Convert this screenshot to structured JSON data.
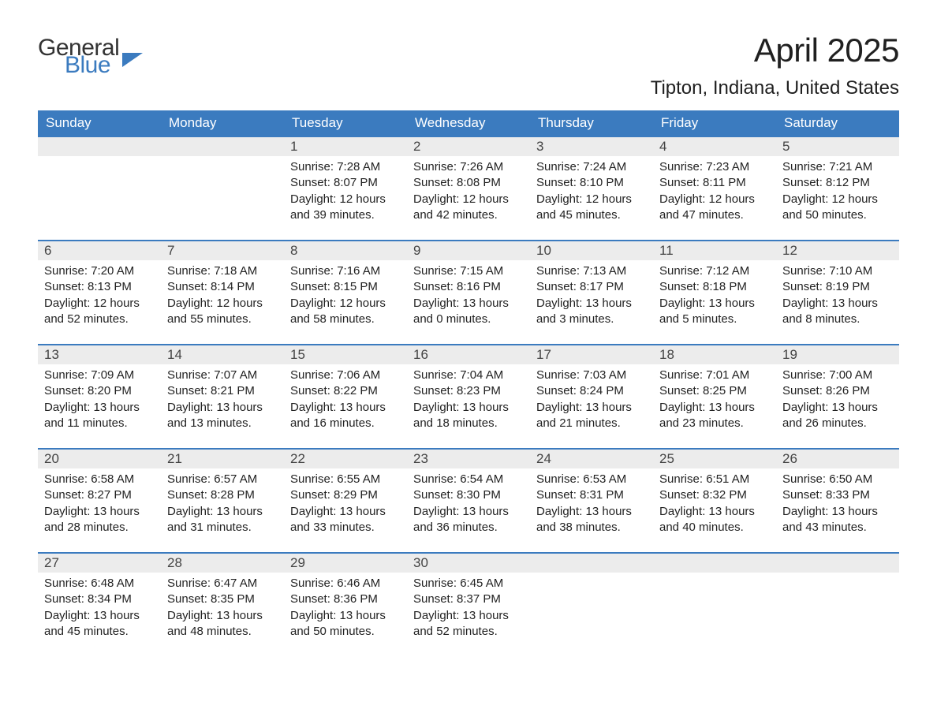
{
  "logo": {
    "text_general": "General",
    "text_blue": "Blue"
  },
  "title": "April 2025",
  "location": "Tipton, Indiana, United States",
  "colors": {
    "header_bg": "#3b7bbf",
    "header_text": "#ffffff",
    "daynum_bg": "#ececec",
    "row_border": "#3b7bbf",
    "body_text": "#222222",
    "page_bg": "#ffffff"
  },
  "day_headers": [
    "Sunday",
    "Monday",
    "Tuesday",
    "Wednesday",
    "Thursday",
    "Friday",
    "Saturday"
  ],
  "weeks": [
    [
      null,
      null,
      {
        "n": "1",
        "sunrise": "7:28 AM",
        "sunset": "8:07 PM",
        "daylight": "12 hours and 39 minutes."
      },
      {
        "n": "2",
        "sunrise": "7:26 AM",
        "sunset": "8:08 PM",
        "daylight": "12 hours and 42 minutes."
      },
      {
        "n": "3",
        "sunrise": "7:24 AM",
        "sunset": "8:10 PM",
        "daylight": "12 hours and 45 minutes."
      },
      {
        "n": "4",
        "sunrise": "7:23 AM",
        "sunset": "8:11 PM",
        "daylight": "12 hours and 47 minutes."
      },
      {
        "n": "5",
        "sunrise": "7:21 AM",
        "sunset": "8:12 PM",
        "daylight": "12 hours and 50 minutes."
      }
    ],
    [
      {
        "n": "6",
        "sunrise": "7:20 AM",
        "sunset": "8:13 PM",
        "daylight": "12 hours and 52 minutes."
      },
      {
        "n": "7",
        "sunrise": "7:18 AM",
        "sunset": "8:14 PM",
        "daylight": "12 hours and 55 minutes."
      },
      {
        "n": "8",
        "sunrise": "7:16 AM",
        "sunset": "8:15 PM",
        "daylight": "12 hours and 58 minutes."
      },
      {
        "n": "9",
        "sunrise": "7:15 AM",
        "sunset": "8:16 PM",
        "daylight": "13 hours and 0 minutes."
      },
      {
        "n": "10",
        "sunrise": "7:13 AM",
        "sunset": "8:17 PM",
        "daylight": "13 hours and 3 minutes."
      },
      {
        "n": "11",
        "sunrise": "7:12 AM",
        "sunset": "8:18 PM",
        "daylight": "13 hours and 5 minutes."
      },
      {
        "n": "12",
        "sunrise": "7:10 AM",
        "sunset": "8:19 PM",
        "daylight": "13 hours and 8 minutes."
      }
    ],
    [
      {
        "n": "13",
        "sunrise": "7:09 AM",
        "sunset": "8:20 PM",
        "daylight": "13 hours and 11 minutes."
      },
      {
        "n": "14",
        "sunrise": "7:07 AM",
        "sunset": "8:21 PM",
        "daylight": "13 hours and 13 minutes."
      },
      {
        "n": "15",
        "sunrise": "7:06 AM",
        "sunset": "8:22 PM",
        "daylight": "13 hours and 16 minutes."
      },
      {
        "n": "16",
        "sunrise": "7:04 AM",
        "sunset": "8:23 PM",
        "daylight": "13 hours and 18 minutes."
      },
      {
        "n": "17",
        "sunrise": "7:03 AM",
        "sunset": "8:24 PM",
        "daylight": "13 hours and 21 minutes."
      },
      {
        "n": "18",
        "sunrise": "7:01 AM",
        "sunset": "8:25 PM",
        "daylight": "13 hours and 23 minutes."
      },
      {
        "n": "19",
        "sunrise": "7:00 AM",
        "sunset": "8:26 PM",
        "daylight": "13 hours and 26 minutes."
      }
    ],
    [
      {
        "n": "20",
        "sunrise": "6:58 AM",
        "sunset": "8:27 PM",
        "daylight": "13 hours and 28 minutes."
      },
      {
        "n": "21",
        "sunrise": "6:57 AM",
        "sunset": "8:28 PM",
        "daylight": "13 hours and 31 minutes."
      },
      {
        "n": "22",
        "sunrise": "6:55 AM",
        "sunset": "8:29 PM",
        "daylight": "13 hours and 33 minutes."
      },
      {
        "n": "23",
        "sunrise": "6:54 AM",
        "sunset": "8:30 PM",
        "daylight": "13 hours and 36 minutes."
      },
      {
        "n": "24",
        "sunrise": "6:53 AM",
        "sunset": "8:31 PM",
        "daylight": "13 hours and 38 minutes."
      },
      {
        "n": "25",
        "sunrise": "6:51 AM",
        "sunset": "8:32 PM",
        "daylight": "13 hours and 40 minutes."
      },
      {
        "n": "26",
        "sunrise": "6:50 AM",
        "sunset": "8:33 PM",
        "daylight": "13 hours and 43 minutes."
      }
    ],
    [
      {
        "n": "27",
        "sunrise": "6:48 AM",
        "sunset": "8:34 PM",
        "daylight": "13 hours and 45 minutes."
      },
      {
        "n": "28",
        "sunrise": "6:47 AM",
        "sunset": "8:35 PM",
        "daylight": "13 hours and 48 minutes."
      },
      {
        "n": "29",
        "sunrise": "6:46 AM",
        "sunset": "8:36 PM",
        "daylight": "13 hours and 50 minutes."
      },
      {
        "n": "30",
        "sunrise": "6:45 AM",
        "sunset": "8:37 PM",
        "daylight": "13 hours and 52 minutes."
      },
      null,
      null,
      null
    ]
  ],
  "labels": {
    "sunrise": "Sunrise: ",
    "sunset": "Sunset: ",
    "daylight": "Daylight: "
  }
}
